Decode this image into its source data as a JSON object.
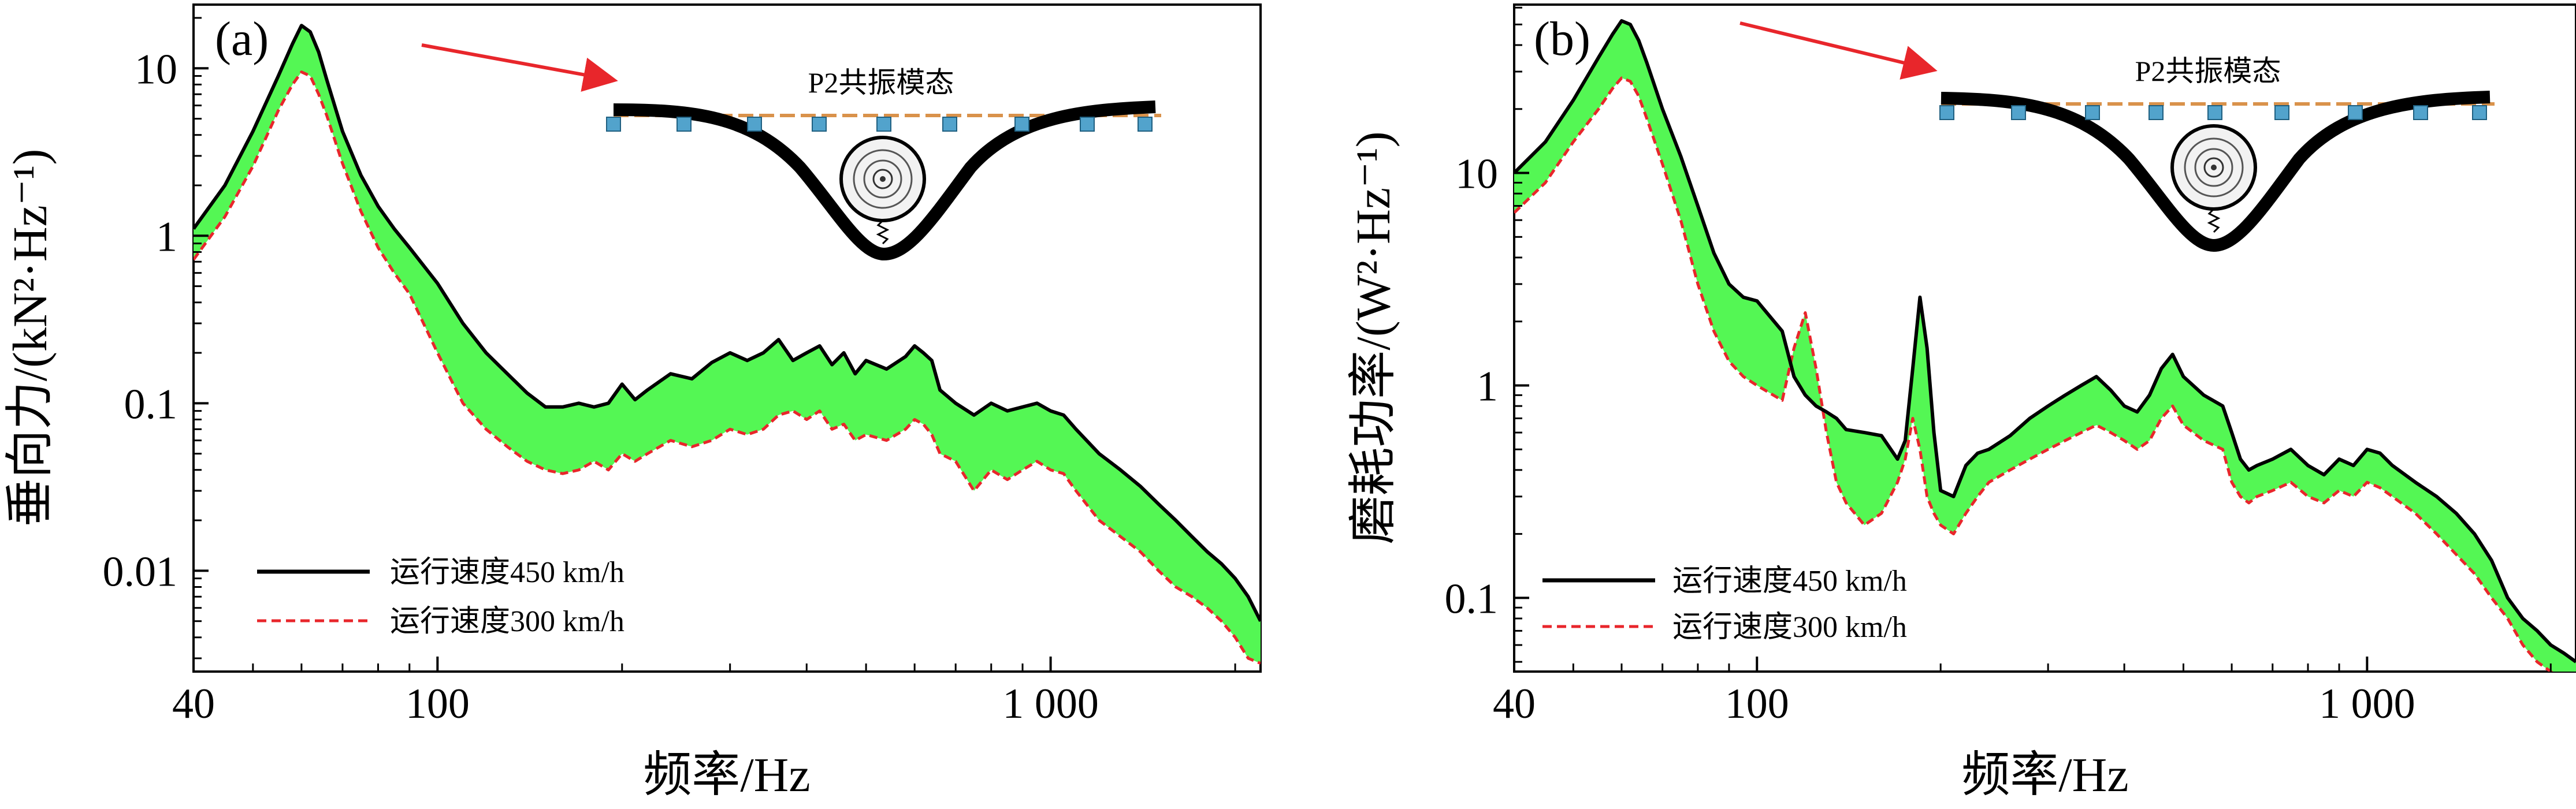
{
  "figure": {
    "background": "#ffffff",
    "colors": {
      "line_450": "#000000",
      "line_300": "#e8262b",
      "band_fill": "#54f754",
      "arrow": "#e8262b",
      "sleeper": "#52a3cc",
      "rail_dash": "#d9924b"
    }
  },
  "chart_data": [
    {
      "type": "line",
      "panel_label": "(a)",
      "xlabel": "频率/Hz",
      "ylabel": "垂向力/(kN²·Hz⁻¹)",
      "xscale": "log",
      "yscale": "log",
      "xlim": [
        40,
        2200
      ],
      "ylim": [
        0.0025,
        24
      ],
      "xticks": [
        40,
        100,
        1000
      ],
      "xtick_labels": [
        "40",
        "100",
        "1 000"
      ],
      "yticks": [
        0.01,
        0.1,
        1,
        10
      ],
      "ytick_labels": [
        "0.01",
        "0.1",
        "1",
        "10"
      ],
      "fill_between_series": true,
      "legend_position": "lower-left",
      "series": [
        {
          "name": "运行速度450 km/h",
          "color": "#000000",
          "style": "solid",
          "x": [
            40,
            45,
            50,
            55,
            58,
            60,
            62,
            64,
            66,
            70,
            75,
            80,
            85,
            90,
            100,
            110,
            120,
            130,
            140,
            150,
            160,
            170,
            180,
            190,
            200,
            210,
            220,
            240,
            260,
            280,
            300,
            320,
            340,
            360,
            380,
            400,
            420,
            440,
            460,
            480,
            500,
            540,
            580,
            600,
            620,
            640,
            660,
            700,
            750,
            800,
            850,
            900,
            950,
            1000,
            1050,
            1100,
            1200,
            1300,
            1400,
            1500,
            1600,
            1700,
            1800,
            1900,
            2000,
            2100,
            2200
          ],
          "y": [
            1.1,
            2.0,
            4.2,
            9.0,
            14.0,
            18.0,
            16.5,
            12.5,
            8.5,
            4.2,
            2.3,
            1.5,
            1.1,
            0.85,
            0.52,
            0.3,
            0.2,
            0.15,
            0.115,
            0.095,
            0.095,
            0.1,
            0.095,
            0.1,
            0.13,
            0.105,
            0.12,
            0.15,
            0.14,
            0.175,
            0.2,
            0.18,
            0.2,
            0.24,
            0.18,
            0.2,
            0.22,
            0.17,
            0.2,
            0.15,
            0.18,
            0.16,
            0.19,
            0.22,
            0.2,
            0.18,
            0.12,
            0.1,
            0.085,
            0.1,
            0.09,
            0.095,
            0.1,
            0.09,
            0.085,
            0.07,
            0.05,
            0.04,
            0.032,
            0.025,
            0.02,
            0.016,
            0.013,
            0.011,
            0.009,
            0.007,
            0.005
          ]
        },
        {
          "name": "运行速度300 km/h",
          "color": "#e8262b",
          "style": "dashed",
          "x": [
            40,
            45,
            50,
            55,
            58,
            60,
            62,
            64,
            66,
            70,
            75,
            80,
            85,
            90,
            100,
            110,
            120,
            130,
            140,
            150,
            160,
            170,
            180,
            190,
            200,
            210,
            220,
            240,
            260,
            280,
            300,
            320,
            340,
            360,
            380,
            400,
            420,
            440,
            460,
            480,
            500,
            540,
            580,
            600,
            620,
            640,
            660,
            700,
            750,
            800,
            850,
            900,
            950,
            1000,
            1050,
            1100,
            1200,
            1300,
            1400,
            1500,
            1600,
            1700,
            1800,
            1900,
            2000,
            2100,
            2200
          ],
          "y": [
            0.72,
            1.3,
            2.6,
            5.6,
            8.0,
            9.5,
            9.0,
            7.0,
            5.2,
            2.7,
            1.4,
            0.85,
            0.6,
            0.45,
            0.2,
            0.1,
            0.07,
            0.055,
            0.045,
            0.04,
            0.038,
            0.04,
            0.045,
            0.04,
            0.05,
            0.045,
            0.05,
            0.06,
            0.055,
            0.06,
            0.07,
            0.065,
            0.07,
            0.085,
            0.09,
            0.08,
            0.09,
            0.07,
            0.075,
            0.06,
            0.065,
            0.06,
            0.07,
            0.08,
            0.075,
            0.065,
            0.05,
            0.045,
            0.03,
            0.04,
            0.035,
            0.04,
            0.045,
            0.04,
            0.038,
            0.03,
            0.02,
            0.016,
            0.013,
            0.01,
            0.008,
            0.007,
            0.006,
            0.005,
            0.004,
            0.003,
            0.0028
          ]
        }
      ],
      "inset": {
        "title": "P2共振模态",
        "description_icon": "wheel-on-deflected-rail-icon"
      }
    },
    {
      "type": "line",
      "panel_label": "(b)",
      "xlabel": "频率/Hz",
      "ylabel": "磨耗功率/(W²·Hz⁻¹)",
      "xscale": "log",
      "yscale": "log",
      "xlim": [
        40,
        2200
      ],
      "ylim": [
        0.045,
        62
      ],
      "xticks": [
        40,
        100,
        1000
      ],
      "xtick_labels": [
        "40",
        "100",
        "1 000"
      ],
      "yticks": [
        0.1,
        1,
        10
      ],
      "ytick_labels": [
        "0.1",
        "1",
        "10"
      ],
      "fill_between_series": true,
      "legend_position": "lower-left",
      "series": [
        {
          "name": "运行速度450 km/h",
          "color": "#000000",
          "style": "solid",
          "x": [
            40,
            45,
            50,
            55,
            58,
            60,
            62,
            64,
            66,
            70,
            75,
            80,
            85,
            90,
            95,
            100,
            110,
            115,
            120,
            125,
            130,
            135,
            140,
            150,
            160,
            170,
            175,
            180,
            185,
            190,
            195,
            200,
            210,
            220,
            230,
            240,
            260,
            280,
            300,
            320,
            340,
            360,
            380,
            400,
            420,
            440,
            460,
            480,
            500,
            540,
            580,
            600,
            620,
            640,
            660,
            700,
            750,
            800,
            850,
            900,
            950,
            1000,
            1050,
            1100,
            1200,
            1300,
            1400,
            1500,
            1600,
            1700,
            1800,
            1900,
            2000,
            2100,
            2200
          ],
          "y": [
            10,
            14,
            22,
            35,
            45,
            52,
            50,
            42,
            33,
            20,
            12,
            7,
            4.2,
            3.0,
            2.6,
            2.5,
            1.8,
            1.1,
            0.9,
            0.8,
            0.75,
            0.7,
            0.62,
            0.6,
            0.58,
            0.45,
            0.55,
            1.2,
            2.6,
            1.5,
            0.6,
            0.32,
            0.3,
            0.42,
            0.48,
            0.5,
            0.58,
            0.7,
            0.8,
            0.9,
            1.0,
            1.1,
            0.95,
            0.8,
            0.75,
            0.9,
            1.2,
            1.4,
            1.1,
            0.9,
            0.8,
            0.6,
            0.45,
            0.4,
            0.42,
            0.45,
            0.5,
            0.42,
            0.38,
            0.45,
            0.42,
            0.5,
            0.48,
            0.42,
            0.35,
            0.3,
            0.25,
            0.2,
            0.15,
            0.1,
            0.08,
            0.07,
            0.06,
            0.055,
            0.05
          ]
        },
        {
          "name": "运行速度300 km/h",
          "color": "#e8262b",
          "style": "dashed",
          "x": [
            40,
            45,
            50,
            55,
            58,
            60,
            62,
            64,
            66,
            70,
            75,
            80,
            85,
            90,
            95,
            100,
            110,
            115,
            120,
            125,
            130,
            135,
            140,
            150,
            160,
            170,
            175,
            180,
            185,
            190,
            195,
            200,
            210,
            220,
            230,
            240,
            260,
            280,
            300,
            320,
            340,
            360,
            380,
            400,
            420,
            440,
            460,
            480,
            500,
            540,
            580,
            600,
            620,
            640,
            660,
            700,
            750,
            800,
            850,
            900,
            950,
            1000,
            1050,
            1100,
            1200,
            1300,
            1400,
            1500,
            1600,
            1700,
            1800,
            1900,
            2000,
            2100,
            2200
          ],
          "y": [
            6.5,
            9,
            14,
            20,
            25,
            28,
            27,
            23,
            18,
            11,
            6,
            3.0,
            1.8,
            1.3,
            1.1,
            1.0,
            0.85,
            1.5,
            2.2,
            1.2,
            0.6,
            0.35,
            0.28,
            0.22,
            0.25,
            0.35,
            0.45,
            0.7,
            0.5,
            0.3,
            0.25,
            0.22,
            0.2,
            0.25,
            0.3,
            0.35,
            0.4,
            0.45,
            0.5,
            0.55,
            0.6,
            0.65,
            0.6,
            0.55,
            0.5,
            0.55,
            0.7,
            0.8,
            0.65,
            0.55,
            0.5,
            0.35,
            0.3,
            0.28,
            0.3,
            0.32,
            0.35,
            0.3,
            0.28,
            0.32,
            0.3,
            0.35,
            0.33,
            0.3,
            0.25,
            0.2,
            0.16,
            0.13,
            0.1,
            0.08,
            0.06,
            0.05,
            0.045,
            0.04,
            0.035
          ]
        }
      ],
      "inset": {
        "title": "P2共振模态",
        "description_icon": "wheel-on-deflected-rail-icon"
      }
    }
  ]
}
